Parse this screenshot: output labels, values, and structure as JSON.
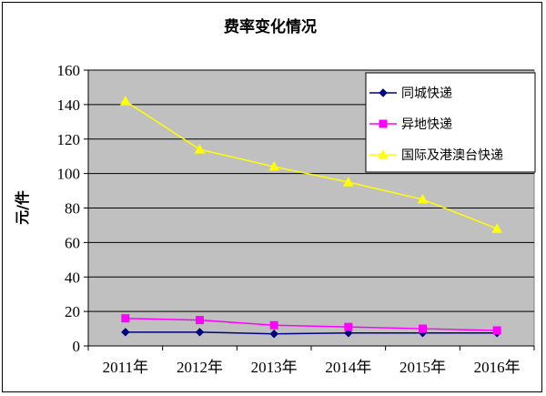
{
  "chart_data": {
    "type": "line",
    "title": "费率变化情况",
    "ylabel": "元/件",
    "xlabel": "",
    "categories": [
      "2011年",
      "2012年",
      "2013年",
      "2014年",
      "2015年",
      "2016年"
    ],
    "ylim": [
      0,
      160
    ],
    "yticks": [
      0,
      20,
      40,
      60,
      80,
      100,
      120,
      140,
      160
    ],
    "grid": true,
    "legend_position": "top-right",
    "plot_background": "#c0c0c0",
    "series": [
      {
        "name": "同城快递",
        "values": [
          8,
          8,
          7,
          7.5,
          7.5,
          7.5
        ],
        "color": "#000080",
        "marker": "diamond"
      },
      {
        "name": "异地快递",
        "values": [
          16,
          15,
          12,
          11,
          10,
          9
        ],
        "color": "#ff00ff",
        "marker": "square"
      },
      {
        "name": "国际及港澳台快递",
        "values": [
          142,
          114,
          104,
          95,
          85,
          68
        ],
        "color": "#ffff00",
        "marker": "triangle"
      }
    ]
  }
}
